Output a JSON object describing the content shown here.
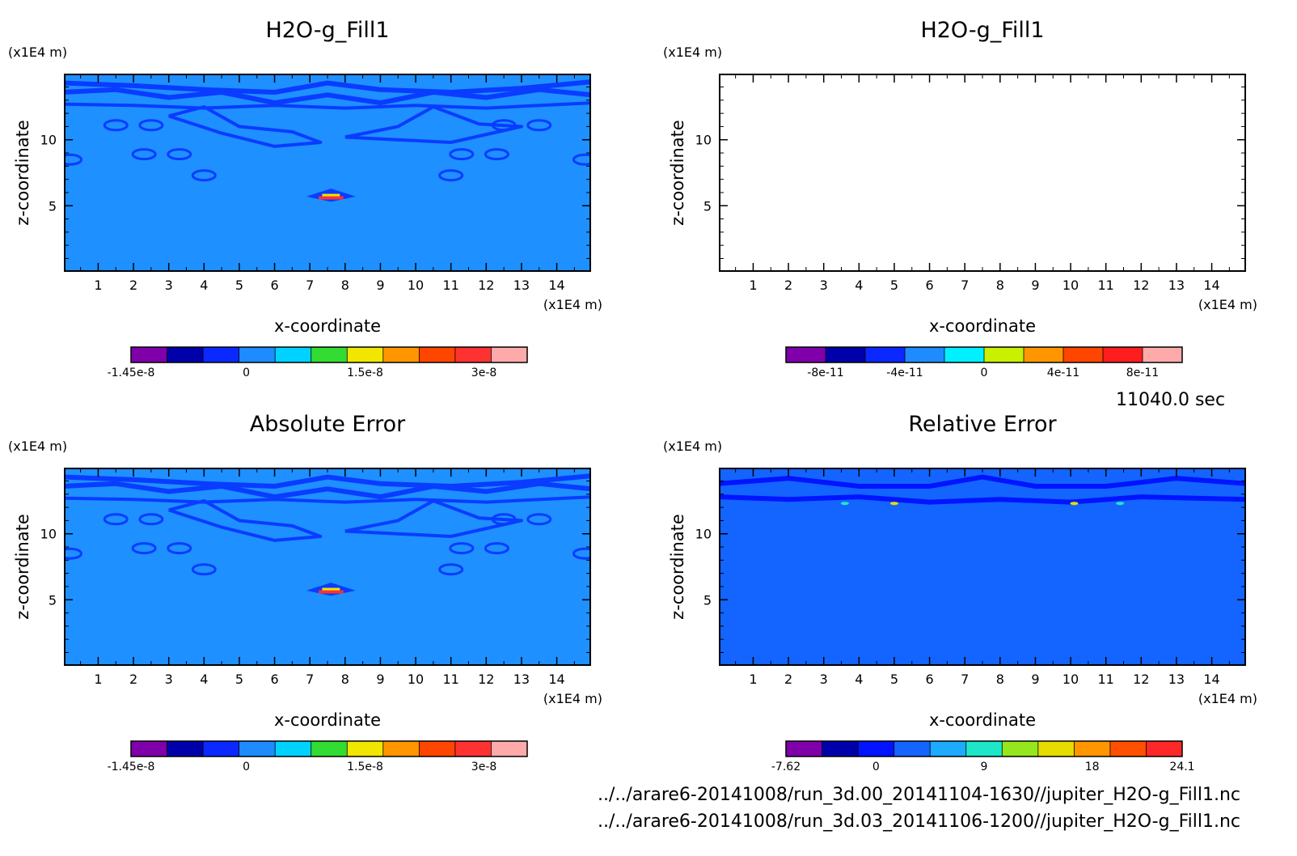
{
  "time_label": "11040.0 sec",
  "files": [
    "../../arare6-20141008/run_3d.00_20141104-1630//jupiter_H2O-g_Fill1.nc",
    "../../arare6-20141008/run_3d.03_20141106-1200//jupiter_H2O-g_Fill1.nc"
  ],
  "colors": {
    "field_background": "#1e90ff",
    "contour_band": "#0a3cff",
    "relative_background": "#1464ff"
  },
  "chart_data": [
    {
      "type": "heatmap",
      "title": "H2O-g_Fill1",
      "xlabel": "x-coordinate",
      "ylabel": "z-coordinate",
      "x_unit": "(x1E4 m)",
      "y_unit": "(x1E4 m)",
      "xlim": [
        0.05,
        14.95
      ],
      "ylim": [
        0.05,
        14.95
      ],
      "x_ticks": [
        "1",
        "2",
        "3",
        "4",
        "5",
        "6",
        "7",
        "8",
        "9",
        "10",
        "11",
        "12",
        "13",
        "14"
      ],
      "y_ticks": [
        "5",
        "10"
      ],
      "style": "field",
      "colorbar": {
        "colors": [
          "#7f00aa",
          "#0000aa",
          "#0a28ff",
          "#1e8cff",
          "#00d2ff",
          "#32dc32",
          "#f0e600",
          "#ff9600",
          "#ff4600",
          "#ff3232",
          "#ffaaaa"
        ],
        "labels": [
          "-1.45e-8",
          "0",
          "1.5e-8",
          "3e-8"
        ],
        "label_positions": [
          0,
          3.2,
          6.5,
          9.8
        ]
      }
    },
    {
      "type": "heatmap",
      "title": "H2O-g_Fill1",
      "xlabel": "x-coordinate",
      "ylabel": "z-coordinate",
      "x_unit": "(x1E4 m)",
      "y_unit": "(x1E4 m)",
      "xlim": [
        0.05,
        14.95
      ],
      "ylim": [
        0.05,
        14.95
      ],
      "x_ticks": [
        "1",
        "2",
        "3",
        "4",
        "5",
        "6",
        "7",
        "8",
        "9",
        "10",
        "11",
        "12",
        "13",
        "14"
      ],
      "y_ticks": [
        "5",
        "10"
      ],
      "style": "empty",
      "colorbar": {
        "colors": [
          "#7f00aa",
          "#0000aa",
          "#0a28ff",
          "#1e8cff",
          "#00f0ff",
          "#c8f000",
          "#ff9600",
          "#ff4600",
          "#ff1e1e",
          "#ffaaaa"
        ],
        "labels": [
          "-8e-11",
          "-4e-11",
          "0",
          "4e-11",
          "8e-11"
        ],
        "label_positions": [
          1,
          3,
          5,
          7,
          9
        ]
      }
    },
    {
      "type": "heatmap",
      "title": "Absolute Error",
      "xlabel": "x-coordinate",
      "ylabel": "z-coordinate",
      "x_unit": "(x1E4 m)",
      "y_unit": "(x1E4 m)",
      "xlim": [
        0.05,
        14.95
      ],
      "ylim": [
        0.05,
        14.95
      ],
      "x_ticks": [
        "1",
        "2",
        "3",
        "4",
        "5",
        "6",
        "7",
        "8",
        "9",
        "10",
        "11",
        "12",
        "13",
        "14"
      ],
      "y_ticks": [
        "5",
        "10"
      ],
      "style": "field",
      "colorbar": {
        "colors": [
          "#7f00aa",
          "#0000aa",
          "#0a28ff",
          "#1e8cff",
          "#00d2ff",
          "#32dc32",
          "#f0e600",
          "#ff9600",
          "#ff4600",
          "#ff3232",
          "#ffaaaa"
        ],
        "labels": [
          "-1.45e-8",
          "0",
          "1.5e-8",
          "3e-8"
        ],
        "label_positions": [
          0,
          3.2,
          6.5,
          9.8
        ]
      }
    },
    {
      "type": "heatmap",
      "title": "Relative Error",
      "xlabel": "x-coordinate",
      "ylabel": "z-coordinate",
      "x_unit": "(x1E4 m)",
      "y_unit": "(x1E4 m)",
      "xlim": [
        0.05,
        14.95
      ],
      "ylim": [
        0.05,
        14.95
      ],
      "x_ticks": [
        "1",
        "2",
        "3",
        "4",
        "5",
        "6",
        "7",
        "8",
        "9",
        "10",
        "11",
        "12",
        "13",
        "14"
      ],
      "y_ticks": [
        "5",
        "10"
      ],
      "style": "relative",
      "colorbar": {
        "colors": [
          "#7f00aa",
          "#0000aa",
          "#0014ff",
          "#1464ff",
          "#1eaaff",
          "#1ee6c8",
          "#96e61e",
          "#e6dc00",
          "#ff9600",
          "#ff5000",
          "#ff2828"
        ],
        "labels": [
          "-7.62",
          "0",
          "9",
          "18",
          "24.1"
        ],
        "label_positions": [
          0,
          2.5,
          5.5,
          8.5,
          11
        ]
      }
    }
  ]
}
